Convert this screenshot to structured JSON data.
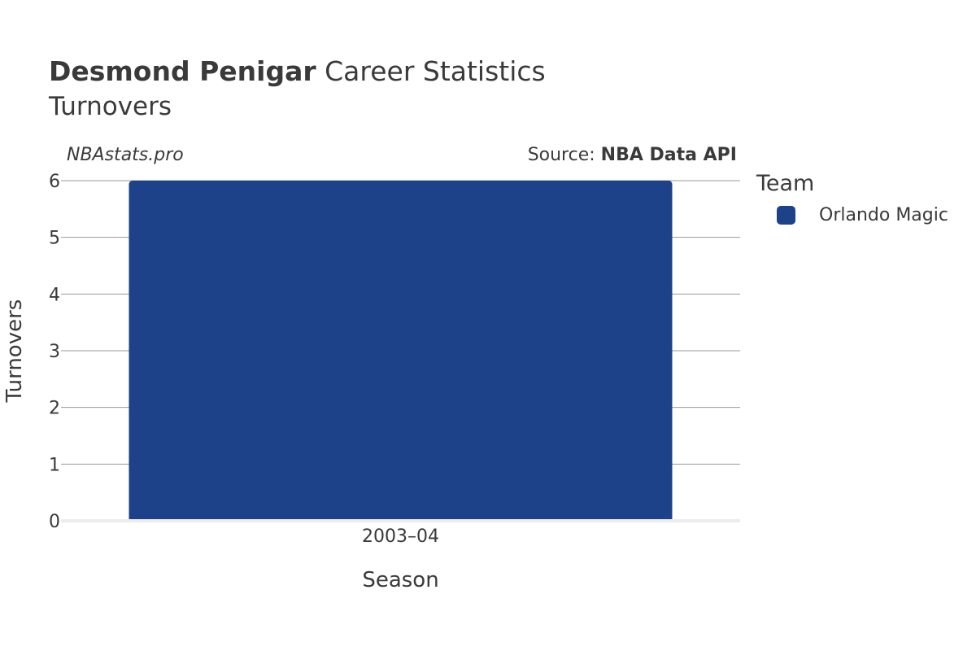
{
  "header": {
    "title_bold": "Desmond Penigar",
    "title_rest": " Career Statistics",
    "subtitle": "Turnovers",
    "watermark": "NBAstats.pro",
    "source_prefix": "Source: ",
    "source_name": "NBA Data API"
  },
  "legend": {
    "title": "Team",
    "items": [
      {
        "label": "Orlando Magic",
        "color": "#1d4289"
      }
    ]
  },
  "chart_data": {
    "type": "bar",
    "categories": [
      "2003–04"
    ],
    "series": [
      {
        "name": "Orlando Magic",
        "values": [
          6
        ],
        "color": "#1d4289"
      }
    ],
    "xlabel": "Season",
    "ylabel": "Turnovers",
    "ylim": [
      0,
      6
    ],
    "yticks": [
      0,
      1,
      2,
      3,
      4,
      5,
      6
    ],
    "grid": true,
    "legend_position": "right"
  }
}
